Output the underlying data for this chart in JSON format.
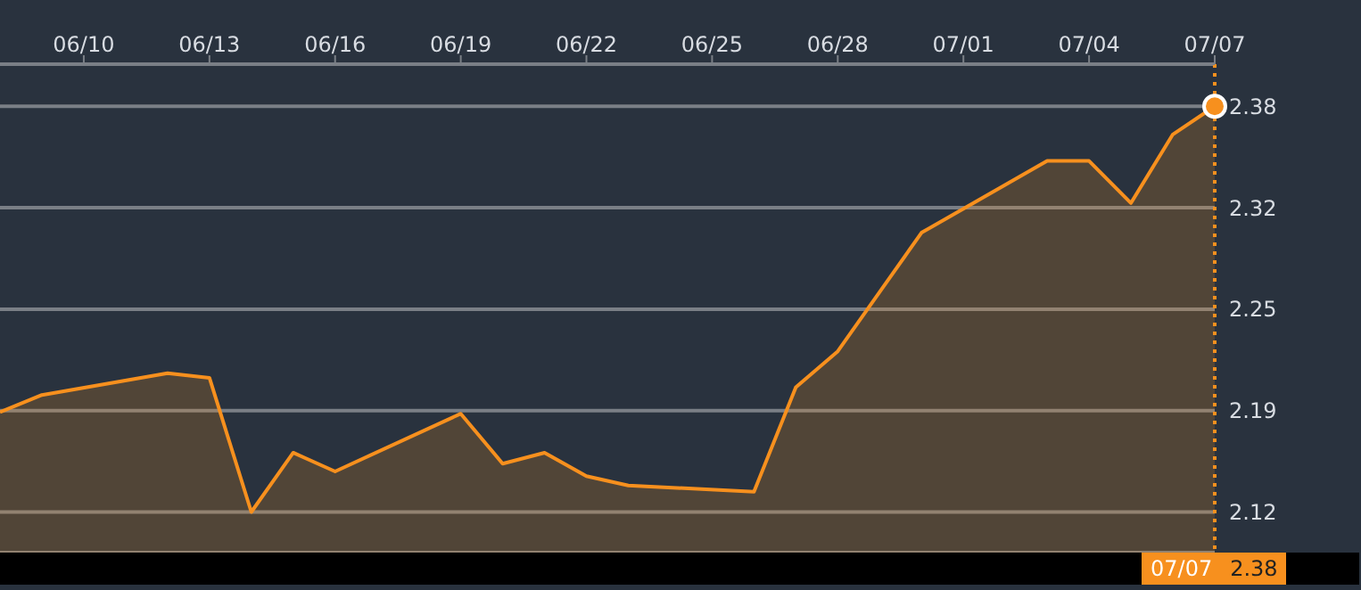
{
  "chart_data": {
    "type": "area",
    "x": [
      "--06-08",
      "--06-09",
      "--06-12",
      "--06-13",
      "--06-14",
      "--06-15",
      "--06-16",
      "--06-19",
      "--06-20",
      "--06-21",
      "--06-22",
      "--06-23",
      "--06-26",
      "--06-27",
      "--06-28",
      "--06-29",
      "--06-30",
      "--07-03",
      "--07-04",
      "--07-05",
      "--07-06",
      "--07-07"
    ],
    "series": [
      {
        "color": "#f7901e",
        "values": [
          2.184,
          2.195,
          2.209,
          2.206,
          2.12,
          2.158,
          2.146,
          2.183,
          2.151,
          2.158,
          2.143,
          2.137,
          2.133,
          2.2,
          2.223,
          2.261,
          2.299,
          2.345,
          2.345,
          2.318,
          2.362,
          2.38
        ]
      }
    ],
    "xlim": [
      "--06-08",
      "--07-07"
    ],
    "xticks": [
      {
        "value": "--06-10",
        "label": "06/10"
      },
      {
        "value": "--06-13",
        "label": "06/13"
      },
      {
        "value": "--06-16",
        "label": "06/16"
      },
      {
        "value": "--06-19",
        "label": "06/19"
      },
      {
        "value": "--06-22",
        "label": "06/22"
      },
      {
        "value": "--06-25",
        "label": "06/25"
      },
      {
        "value": "--06-28",
        "label": "06/28"
      },
      {
        "value": "--07-01",
        "label": "07/01"
      },
      {
        "value": "--07-04",
        "label": "07/04"
      },
      {
        "value": "--07-07",
        "label": "07/07"
      }
    ],
    "ylim": [
      2.094,
      2.407
    ],
    "yticks": [
      2.12,
      {
        "value": 2.185,
        "label": "2.19"
      },
      2.25,
      {
        "value": 2.315,
        "label": "2.32"
      },
      2.38
    ],
    "grid": "y",
    "ref_lines": [
      {
        "axis": "x",
        "value": "--07-07",
        "color": "#f7901e",
        "line_style": "dotted"
      }
    ],
    "annotations": [
      "07/07",
      "2.38"
    ]
  }
}
